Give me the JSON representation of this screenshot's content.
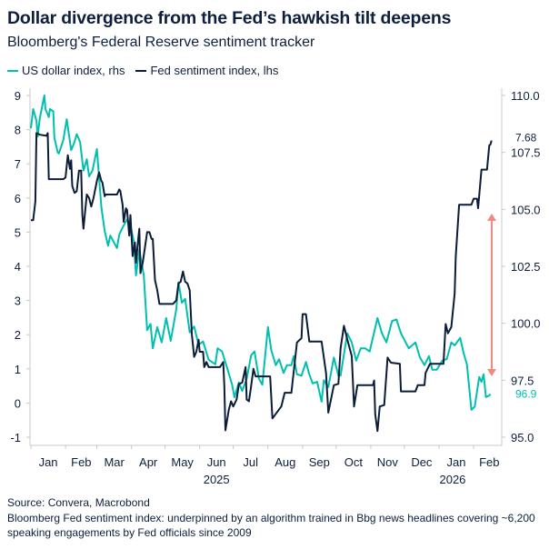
{
  "title": "Dollar divergence from the Fed’s hawkish tilt deepens",
  "subtitle": "Bloomberg's Federal Reserve sentiment tracker",
  "footer": {
    "source": "Source: Convera, Macrobond",
    "note": "Bloomberg Fed sentiment index: underpinned by an algorithm trained in Bbg news headlines covering ~6,200 speaking engagements by Fed officials since 2009"
  },
  "chart_data": {
    "type": "line",
    "title": "Dollar divergence from the Fed’s hawkish tilt deepens",
    "legend_position": "top-left",
    "grid": false,
    "x_ticks": [
      "Jan",
      "Feb",
      "Mar",
      "Apr",
      "May",
      "Jun",
      "Jul",
      "Aug",
      "Sep",
      "Oct",
      "Nov",
      "Dec",
      "Jan",
      "Feb"
    ],
    "x_years": [
      "2025",
      "2026"
    ],
    "x_range": [
      "2025-01-01",
      "2026-02-24"
    ],
    "y_left": {
      "ticks": [
        "9",
        "8",
        "7",
        "6",
        "5",
        "4",
        "3",
        "2",
        "1",
        "0",
        "-1"
      ],
      "range": [
        -1,
        9
      ]
    },
    "y_right": {
      "ticks": [
        "110.0",
        "107.5",
        "105.0",
        "102.5",
        "100.0",
        "97.5",
        "95.0"
      ],
      "range": [
        95,
        110
      ]
    },
    "colors": {
      "dollar": "#00bfae",
      "fed": "#0a1c38",
      "arrow": "#f08a7e"
    },
    "series": [
      {
        "name": "US dollar index, rhs",
        "axis": "right",
        "end_label": "96.9",
        "points": [
          [
            "2025-01-01",
            108.56
          ],
          [
            "2025-01-03",
            109.4
          ],
          [
            "2025-01-06",
            108.9
          ],
          [
            "2025-01-07",
            108.2
          ],
          [
            "2025-01-09",
            109.0
          ],
          [
            "2025-01-13",
            110.0
          ],
          [
            "2025-01-14",
            109.4
          ],
          [
            "2025-01-17",
            109.05
          ],
          [
            "2025-01-18",
            109.4
          ],
          [
            "2025-01-21",
            109.3
          ],
          [
            "2025-01-22",
            108.15
          ],
          [
            "2025-01-25",
            107.5
          ],
          [
            "2025-01-26",
            107.45
          ],
          [
            "2025-01-30",
            108.05
          ],
          [
            "2025-02-02",
            108.96
          ],
          [
            "2025-02-06",
            107.6
          ],
          [
            "2025-02-09",
            107.96
          ],
          [
            "2025-02-11",
            108.3
          ],
          [
            "2025-02-14",
            107.96
          ],
          [
            "2025-02-17",
            106.7
          ],
          [
            "2025-02-20",
            107.2
          ],
          [
            "2025-02-22",
            106.45
          ],
          [
            "2025-02-25",
            106.7
          ],
          [
            "2025-03-01",
            107.65
          ],
          [
            "2025-03-05",
            105.1
          ],
          [
            "2025-03-08",
            104.05
          ],
          [
            "2025-03-11",
            103.4
          ],
          [
            "2025-03-13",
            103.85
          ],
          [
            "2025-03-19",
            103.3
          ],
          [
            "2025-03-21",
            103.9
          ],
          [
            "2025-03-25",
            104.3
          ],
          [
            "2025-03-28",
            104.55
          ],
          [
            "2025-03-31",
            104.3
          ],
          [
            "2025-04-03",
            103.6
          ],
          [
            "2025-04-05",
            102.1
          ],
          [
            "2025-04-08",
            103.25
          ],
          [
            "2025-04-12",
            102.1
          ],
          [
            "2025-04-15",
            99.7
          ],
          [
            "2025-04-18",
            99.97
          ],
          [
            "2025-04-20",
            98.9
          ],
          [
            "2025-04-24",
            99.83
          ],
          [
            "2025-04-28",
            99.16
          ],
          [
            "2025-05-02",
            100.23
          ],
          [
            "2025-05-06",
            99.23
          ],
          [
            "2025-05-11",
            100.6
          ],
          [
            "2025-05-13",
            101.8
          ],
          [
            "2025-05-16",
            100.9
          ],
          [
            "2025-05-19",
            101.07
          ],
          [
            "2025-05-23",
            99.6
          ],
          [
            "2025-05-27",
            99.86
          ],
          [
            "2025-05-31",
            99.06
          ],
          [
            "2025-06-04",
            99.2
          ],
          [
            "2025-06-09",
            98.4
          ],
          [
            "2025-06-15",
            98.2
          ],
          [
            "2025-06-17",
            98.9
          ],
          [
            "2025-06-21",
            98.76
          ],
          [
            "2025-06-26",
            97.96
          ],
          [
            "2025-06-30",
            97.3
          ],
          [
            "2025-07-02",
            96.75
          ],
          [
            "2025-07-06",
            97.4
          ],
          [
            "2025-07-09",
            97.03
          ],
          [
            "2025-07-13",
            97.56
          ],
          [
            "2025-07-17",
            98.6
          ],
          [
            "2025-07-20",
            98.76
          ],
          [
            "2025-07-24",
            97.56
          ],
          [
            "2025-07-27",
            97.3
          ],
          [
            "2025-08-01",
            99.83
          ],
          [
            "2025-08-04",
            98.83
          ],
          [
            "2025-08-08",
            98.16
          ],
          [
            "2025-08-11",
            98.42
          ],
          [
            "2025-08-15",
            97.82
          ],
          [
            "2025-08-18",
            98.16
          ],
          [
            "2025-08-22",
            98.16
          ],
          [
            "2025-08-24",
            98.56
          ],
          [
            "2025-08-27",
            97.76
          ],
          [
            "2025-08-31",
            97.7
          ],
          [
            "2025-09-04",
            98.3
          ],
          [
            "2025-09-07",
            97.76
          ],
          [
            "2025-09-10",
            97.36
          ],
          [
            "2025-09-14",
            97.43
          ],
          [
            "2025-09-18",
            96.56
          ],
          [
            "2025-09-20",
            97.5
          ],
          [
            "2025-09-24",
            97.2
          ],
          [
            "2025-09-29",
            98.5
          ],
          [
            "2025-10-03",
            97.7
          ],
          [
            "2025-10-05",
            97.7
          ],
          [
            "2025-10-11",
            99.56
          ],
          [
            "2025-10-15",
            99.16
          ],
          [
            "2025-10-19",
            98.36
          ],
          [
            "2025-10-23",
            98.9
          ],
          [
            "2025-10-27",
            98.9
          ],
          [
            "2025-10-31",
            98.76
          ],
          [
            "2025-11-07",
            100.23
          ],
          [
            "2025-11-11",
            99.56
          ],
          [
            "2025-11-15",
            99.16
          ],
          [
            "2025-11-20",
            100.1
          ],
          [
            "2025-11-24",
            100.17
          ],
          [
            "2025-11-28",
            99.56
          ],
          [
            "2025-12-05",
            98.9
          ],
          [
            "2025-12-11",
            99.16
          ],
          [
            "2025-12-15",
            98.5
          ],
          [
            "2025-12-19",
            98.16
          ],
          [
            "2025-12-23",
            98.56
          ],
          [
            "2025-12-26",
            97.96
          ],
          [
            "2025-12-30",
            97.96
          ],
          [
            "2026-01-04",
            98.36
          ],
          [
            "2026-01-08",
            98.43
          ],
          [
            "2026-01-12",
            99.16
          ],
          [
            "2026-01-15",
            99.03
          ],
          [
            "2026-01-20",
            99.36
          ],
          [
            "2026-01-23",
            98.7
          ],
          [
            "2026-01-26",
            98.2
          ],
          [
            "2026-01-30",
            96.2
          ],
          [
            "2026-02-02",
            96.34
          ],
          [
            "2026-02-06",
            97.64
          ],
          [
            "2026-02-08",
            97.43
          ],
          [
            "2026-02-10",
            97.76
          ],
          [
            "2026-02-12",
            96.76
          ],
          [
            "2026-02-15",
            96.83
          ],
          [
            "2026-02-16",
            96.9
          ]
        ]
      },
      {
        "name": "Fed sentiment index, lhs",
        "axis": "left",
        "end_label": "7.68",
        "points": [
          [
            "2025-01-01",
            5.35
          ],
          [
            "2025-01-03",
            5.35
          ],
          [
            "2025-01-05",
            5.9
          ],
          [
            "2025-01-06",
            7.9
          ],
          [
            "2025-01-09",
            7.85
          ],
          [
            "2025-01-15",
            7.82
          ],
          [
            "2025-01-16",
            7.9
          ],
          [
            "2025-01-17",
            6.55
          ],
          [
            "2025-01-30",
            6.55
          ],
          [
            "2025-02-01",
            6.6
          ],
          [
            "2025-02-03",
            7.25
          ],
          [
            "2025-02-05",
            6.85
          ],
          [
            "2025-02-06",
            7.1
          ],
          [
            "2025-02-07",
            6.35
          ],
          [
            "2025-02-09",
            6.15
          ],
          [
            "2025-02-11",
            6.2
          ],
          [
            "2025-02-13",
            6.8
          ],
          [
            "2025-02-15",
            6.8
          ],
          [
            "2025-02-16",
            5.5
          ],
          [
            "2025-02-17",
            5.1
          ],
          [
            "2025-02-20",
            6.1
          ],
          [
            "2025-02-22",
            6.0
          ],
          [
            "2025-02-24",
            5.75
          ],
          [
            "2025-02-26",
            6.0
          ],
          [
            "2025-03-01",
            6.5
          ],
          [
            "2025-03-03",
            6.75
          ],
          [
            "2025-03-05",
            6.5
          ],
          [
            "2025-03-06",
            6.45
          ],
          [
            "2025-03-08",
            6.05
          ],
          [
            "2025-03-09",
            6.1
          ],
          [
            "2025-03-19",
            6.1
          ],
          [
            "2025-03-21",
            6.25
          ],
          [
            "2025-03-22",
            6.2
          ],
          [
            "2025-03-24",
            5.8
          ],
          [
            "2025-03-25",
            5.3
          ],
          [
            "2025-03-27",
            5.7
          ],
          [
            "2025-03-28",
            5.65
          ],
          [
            "2025-03-30",
            4.9
          ],
          [
            "2025-03-31",
            5.5
          ],
          [
            "2025-04-02",
            4.3
          ],
          [
            "2025-04-04",
            4.7
          ],
          [
            "2025-04-05",
            4.1
          ],
          [
            "2025-04-07",
            4.8
          ],
          [
            "2025-04-08",
            5.1
          ],
          [
            "2025-04-09",
            3.8
          ],
          [
            "2025-04-11",
            4.1
          ],
          [
            "2025-04-15",
            5.0
          ],
          [
            "2025-04-17",
            5.0
          ],
          [
            "2025-04-19",
            4.8
          ],
          [
            "2025-04-20",
            4.8
          ],
          [
            "2025-04-22",
            3.6
          ],
          [
            "2025-04-24",
            3.3
          ],
          [
            "2025-04-26",
            2.9
          ],
          [
            "2025-05-08",
            2.9
          ],
          [
            "2025-05-11",
            3.0
          ],
          [
            "2025-05-13",
            3.5
          ],
          [
            "2025-05-15",
            3.55
          ],
          [
            "2025-05-17",
            3.85
          ],
          [
            "2025-05-19",
            3.55
          ],
          [
            "2025-05-21",
            3.5
          ],
          [
            "2025-05-23",
            3.3
          ],
          [
            "2025-05-25",
            2.0
          ],
          [
            "2025-05-27",
            1.35
          ],
          [
            "2025-05-29",
            1.5
          ],
          [
            "2025-05-31",
            1.85
          ],
          [
            "2025-06-01",
            1.5
          ],
          [
            "2025-06-04",
            1.5
          ],
          [
            "2025-06-05",
            1.05
          ],
          [
            "2025-06-07",
            1.2
          ],
          [
            "2025-06-09",
            1.05
          ],
          [
            "2025-06-19",
            1.05
          ],
          [
            "2025-06-22",
            1.2
          ],
          [
            "2025-06-23",
            0.5
          ],
          [
            "2025-06-24",
            -0.8
          ],
          [
            "2025-06-27",
            -0.2
          ],
          [
            "2025-06-29",
            0.05
          ],
          [
            "2025-07-01",
            -0.1
          ],
          [
            "2025-07-04",
            0.1
          ],
          [
            "2025-07-06",
            0.55
          ],
          [
            "2025-07-09",
            0.6
          ],
          [
            "2025-07-12",
            1.05
          ],
          [
            "2025-07-13",
            0.1
          ],
          [
            "2025-07-15",
            0.05
          ],
          [
            "2025-07-17",
            0.5
          ],
          [
            "2025-07-19",
            1.0
          ],
          [
            "2025-07-21",
            0.78
          ],
          [
            "2025-08-03",
            0.78
          ],
          [
            "2025-08-05",
            -0.45
          ],
          [
            "2025-08-13",
            -0.1
          ],
          [
            "2025-08-16",
            0.3
          ],
          [
            "2025-08-22",
            0.3
          ],
          [
            "2025-08-23",
            0.6
          ],
          [
            "2025-08-27",
            1.77
          ],
          [
            "2025-08-31",
            1.9
          ],
          [
            "2025-09-01",
            2.6
          ],
          [
            "2025-09-04",
            2.6
          ],
          [
            "2025-09-07",
            1.8
          ],
          [
            "2025-09-18",
            1.8
          ],
          [
            "2025-09-22",
            0.88
          ],
          [
            "2025-09-24",
            -0.28
          ],
          [
            "2025-09-29",
            0.52
          ],
          [
            "2025-10-03",
            0.56
          ],
          [
            "2025-10-05",
            1.6
          ],
          [
            "2025-10-08",
            2.26
          ],
          [
            "2025-10-11",
            1.86
          ],
          [
            "2025-10-15",
            1.37
          ],
          [
            "2025-10-17",
            -0.1
          ],
          [
            "2025-10-20",
            0.52
          ],
          [
            "2025-11-03",
            0.52
          ],
          [
            "2025-11-04",
            0.66
          ],
          [
            "2025-11-05",
            -0.33
          ],
          [
            "2025-11-07",
            -0.82
          ],
          [
            "2025-11-09",
            -0.1
          ],
          [
            "2025-11-13",
            -0.06
          ],
          [
            "2025-11-16",
            1.33
          ],
          [
            "2025-11-19",
            1.18
          ],
          [
            "2025-11-27",
            1.15
          ],
          [
            "2025-11-28",
            0.34
          ],
          [
            "2025-12-11",
            0.34
          ],
          [
            "2025-12-13",
            0.52
          ],
          [
            "2025-12-19",
            0.52
          ],
          [
            "2025-12-20",
            0.88
          ],
          [
            "2025-12-24",
            1.15
          ],
          [
            "2026-01-05",
            1.15
          ],
          [
            "2026-01-07",
            2.31
          ],
          [
            "2026-01-09",
            2.04
          ],
          [
            "2026-01-12",
            2.22
          ],
          [
            "2026-01-15",
            3.2
          ],
          [
            "2026-01-16",
            4.28
          ],
          [
            "2026-01-19",
            5.8
          ],
          [
            "2026-01-30",
            5.8
          ],
          [
            "2026-02-01",
            5.98
          ],
          [
            "2026-02-04",
            5.98
          ],
          [
            "2026-02-05",
            5.7
          ],
          [
            "2026-02-08",
            6.83
          ],
          [
            "2026-02-13",
            6.83
          ],
          [
            "2026-02-15",
            7.54
          ],
          [
            "2026-02-16",
            7.56
          ],
          [
            "2026-02-17",
            7.68
          ]
        ]
      }
    ]
  }
}
